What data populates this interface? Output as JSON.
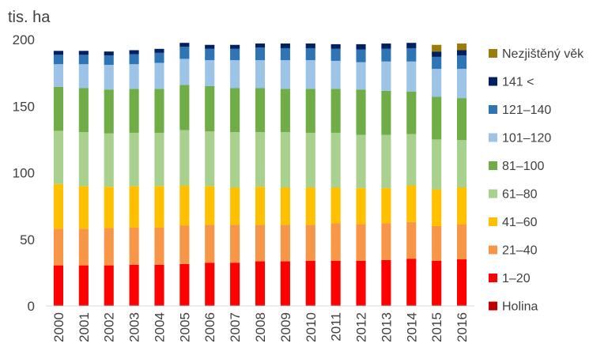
{
  "chart_data": {
    "type": "bar",
    "stacked": true,
    "ylabel": "tis. ha",
    "ylim": [
      0,
      200
    ],
    "yticks": [
      0,
      50,
      100,
      150,
      200
    ],
    "grid": false,
    "legend_position": "right",
    "categories": [
      "2000",
      "2001",
      "2002",
      "2003",
      "2004",
      "2005",
      "2006",
      "2007",
      "2008",
      "2009",
      "2010",
      "2011",
      "2012",
      "2013",
      "2014",
      "2015",
      "2016"
    ],
    "series": [
      {
        "name": "Holina",
        "color": "#c00000",
        "values": [
          1,
          1,
          1,
          1,
          1,
          1,
          1,
          1,
          1,
          1,
          1,
          1,
          1,
          1,
          1,
          1,
          1
        ]
      },
      {
        "name": "1–20",
        "color": "#ff0000",
        "values": [
          29.5,
          29.5,
          29.5,
          30,
          30,
          30.5,
          31.5,
          31.5,
          32.5,
          32.5,
          33,
          33,
          33,
          33.5,
          34.5,
          33,
          34
        ]
      },
      {
        "name": "21–40",
        "color": "#f79646",
        "values": [
          27.5,
          27.5,
          28,
          28,
          28,
          29,
          28.5,
          28.5,
          27.5,
          27.5,
          27,
          28,
          27.5,
          27.5,
          27.5,
          26,
          26.5
        ]
      },
      {
        "name": "41–60",
        "color": "#ffc000",
        "values": [
          33.5,
          32,
          31,
          31,
          31,
          30,
          29,
          28,
          28.5,
          28,
          28,
          27,
          27,
          26.5,
          27.5,
          27.5,
          27.5
        ]
      },
      {
        "name": "61–80",
        "color": "#a9d18e",
        "values": [
          40,
          40.5,
          40,
          40,
          40,
          41.5,
          41,
          41.5,
          41,
          41.5,
          41,
          41,
          40,
          40,
          38.5,
          37.5,
          35.5
        ]
      },
      {
        "name": "81–100",
        "color": "#70ad47",
        "values": [
          33,
          33,
          33,
          33,
          33,
          34,
          34,
          33,
          33,
          32.5,
          33,
          33,
          34,
          33,
          32,
          32,
          31.5
        ]
      },
      {
        "name": "101–120",
        "color": "#9dc3e6",
        "values": [
          17,
          18,
          18.5,
          18.5,
          19.5,
          19.5,
          19.5,
          21,
          21,
          21.5,
          21.5,
          21,
          20.5,
          22,
          22.5,
          21,
          22
        ]
      },
      {
        "name": "121–140",
        "color": "#2e75b6",
        "values": [
          7,
          7,
          7,
          7.5,
          7.5,
          9,
          8.5,
          8.5,
          9.5,
          9,
          9,
          9,
          9.5,
          9.5,
          10,
          9,
          10
        ]
      },
      {
        "name": "141 <",
        "color": "#002060",
        "values": [
          3,
          3,
          3,
          3,
          3,
          3,
          3,
          3,
          3,
          3.5,
          3.5,
          3.5,
          4,
          4,
          4,
          4,
          4
        ]
      },
      {
        "name": "Nezjištěný věk",
        "color": "#9c7a0c",
        "values": [
          0,
          0,
          0,
          0,
          0,
          0,
          0,
          0,
          0,
          0,
          0,
          0,
          0,
          0,
          0,
          5,
          5
        ]
      }
    ]
  }
}
